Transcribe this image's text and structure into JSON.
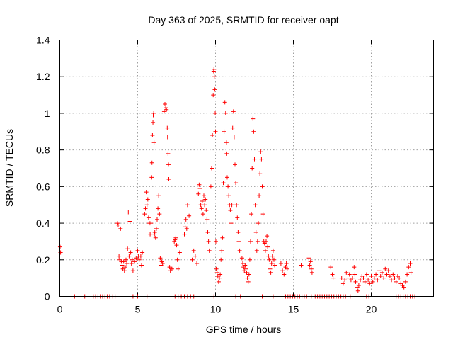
{
  "chart_data": {
    "type": "scatter",
    "title": "Day 363 of 2025, SRMTID for receiver oapt",
    "xlabel": "GPS time / hours",
    "ylabel": "SRMTID / TECUs",
    "xlim": [
      0,
      24
    ],
    "ylim": [
      0,
      1.4
    ],
    "xticks": [
      0,
      5,
      10,
      15,
      20
    ],
    "yticks": [
      0,
      0.2,
      0.4,
      0.6,
      0.8,
      1,
      1.2,
      1.4
    ],
    "xtick_labels": [
      "0",
      "5",
      "10",
      "15",
      "20"
    ],
    "ytick_labels": [
      "0",
      "0.2",
      "0.4",
      "0.6",
      "0.8",
      "1",
      "1.2",
      "1.4"
    ],
    "grid": true,
    "marker": "+",
    "marker_color": "#ff0000",
    "series": [
      {
        "name": "SRMTID",
        "points": [
          [
            0.02,
            0.27
          ],
          [
            0.05,
            0.24
          ],
          [
            0.95,
            0
          ],
          [
            1.6,
            0
          ],
          [
            2.15,
            0
          ],
          [
            2.3,
            0
          ],
          [
            2.45,
            0
          ],
          [
            2.6,
            0
          ],
          [
            2.75,
            0
          ],
          [
            2.9,
            0
          ],
          [
            3.05,
            0
          ],
          [
            3.2,
            0
          ],
          [
            3.4,
            0
          ],
          [
            3.55,
            0
          ],
          [
            3.7,
            0.4
          ],
          [
            3.75,
            0.39
          ],
          [
            3.8,
            0.22
          ],
          [
            3.85,
            0.2
          ],
          [
            3.9,
            0.37
          ],
          [
            3.95,
            0.19
          ],
          [
            4.0,
            0.17
          ],
          [
            4.05,
            0.15
          ],
          [
            4.1,
            0.19
          ],
          [
            4.15,
            0.14
          ],
          [
            4.2,
            0.16
          ],
          [
            4.25,
            0.2
          ],
          [
            4.3,
            0.18
          ],
          [
            4.35,
            0.26
          ],
          [
            4.4,
            0.46
          ],
          [
            4.45,
            0.22
          ],
          [
            4.5,
            0.41
          ],
          [
            4.55,
            0.24
          ],
          [
            4.6,
            0.18
          ],
          [
            4.65,
            0.2
          ],
          [
            4.7,
            0.14
          ],
          [
            4.8,
            0.19
          ],
          [
            4.9,
            0.21
          ],
          [
            5.0,
            0.25
          ],
          [
            5.05,
            0.22
          ],
          [
            5.1,
            0.2
          ],
          [
            5.2,
            0.22
          ],
          [
            5.25,
            0.17
          ],
          [
            5.3,
            0.24
          ],
          [
            5.45,
            0.45
          ],
          [
            5.5,
            0.48
          ],
          [
            5.55,
            0.57
          ],
          [
            5.6,
            0.5
          ],
          [
            5.65,
            0.53
          ],
          [
            5.7,
            0.43
          ],
          [
            5.75,
            0.4
          ],
          [
            5.8,
            0.34
          ],
          [
            5.85,
            0.4
          ],
          [
            5.9,
            0.65
          ],
          [
            5.92,
            0.73
          ],
          [
            5.95,
            0.88
          ],
          [
            5.98,
            0.95
          ],
          [
            6.0,
            0.99
          ],
          [
            6.03,
            1.0
          ],
          [
            6.05,
            0.84
          ],
          [
            6.08,
            0.34
          ],
          [
            6.1,
            0.35
          ],
          [
            6.15,
            0.32
          ],
          [
            6.2,
            0.37
          ],
          [
            6.25,
            0.42
          ],
          [
            6.3,
            0.48
          ],
          [
            6.35,
            0.55
          ],
          [
            6.4,
            0.45
          ],
          [
            6.45,
            0.21
          ],
          [
            6.5,
            0.17
          ],
          [
            6.55,
            0.19
          ],
          [
            6.6,
            0.18
          ],
          [
            6.7,
            1.01
          ],
          [
            6.75,
            1.05
          ],
          [
            6.8,
            1.03
          ],
          [
            6.85,
            1.02
          ],
          [
            6.9,
            0.92
          ],
          [
            6.92,
            0.87
          ],
          [
            6.95,
            0.78
          ],
          [
            6.98,
            0.72
          ],
          [
            7.0,
            0.64
          ],
          [
            7.05,
            0.16
          ],
          [
            7.1,
            0.14
          ],
          [
            7.2,
            0.15
          ],
          [
            7.35,
            0.3
          ],
          [
            7.4,
            0.31
          ],
          [
            7.45,
            0.32
          ],
          [
            7.5,
            0.28
          ],
          [
            7.55,
            0.2
          ],
          [
            7.6,
            0.15
          ],
          [
            7.7,
            0.24
          ],
          [
            8.0,
            0.34
          ],
          [
            8.05,
            0.38
          ],
          [
            8.1,
            0.42
          ],
          [
            8.15,
            0.37
          ],
          [
            8.2,
            0.5
          ],
          [
            8.3,
            0.44
          ],
          [
            8.5,
            0.2
          ],
          [
            8.6,
            0.25
          ],
          [
            8.7,
            0.22
          ],
          [
            8.8,
            0.18
          ],
          [
            8.9,
            0.56
          ],
          [
            8.95,
            0.61
          ],
          [
            9.0,
            0.59
          ],
          [
            9.05,
            0.5
          ],
          [
            9.1,
            0.48
          ],
          [
            9.15,
            0.52
          ],
          [
            9.2,
            0.45
          ],
          [
            9.25,
            0.55
          ],
          [
            9.3,
            0.5
          ],
          [
            9.35,
            0.53
          ],
          [
            9.4,
            0.47
          ],
          [
            9.45,
            0.42
          ],
          [
            9.5,
            0.35
          ],
          [
            9.55,
            0.3
          ],
          [
            9.6,
            0.25
          ],
          [
            9.7,
            0.6
          ],
          [
            9.75,
            0.7
          ],
          [
            9.8,
            0.88
          ],
          [
            9.85,
            1.1
          ],
          [
            9.88,
            1.23
          ],
          [
            9.9,
            1.24
          ],
          [
            9.92,
            1.2
          ],
          [
            9.95,
            1.13
          ],
          [
            9.98,
            1.0
          ],
          [
            10.0,
            0.9
          ],
          [
            10.02,
            0.3
          ],
          [
            10.05,
            0.15
          ],
          [
            10.1,
            0.13
          ],
          [
            10.15,
            0.11
          ],
          [
            10.2,
            0.08
          ],
          [
            10.25,
            0.1
          ],
          [
            10.3,
            0.12
          ],
          [
            10.35,
            0.2
          ],
          [
            10.4,
            0.25
          ],
          [
            10.45,
            0.32
          ],
          [
            10.5,
            0.62
          ],
          [
            10.55,
            0.9
          ],
          [
            10.6,
            1.06
          ],
          [
            10.65,
            1.0
          ],
          [
            10.7,
            0.84
          ],
          [
            10.72,
            0.78
          ],
          [
            10.75,
            0.65
          ],
          [
            10.8,
            0.6
          ],
          [
            10.85,
            0.55
          ],
          [
            10.9,
            0.5
          ],
          [
            10.95,
            0.47
          ],
          [
            11.0,
            0.4
          ],
          [
            11.05,
            0.5
          ],
          [
            11.1,
            0.92
          ],
          [
            11.15,
            1.01
          ],
          [
            11.2,
            0.87
          ],
          [
            11.25,
            0.72
          ],
          [
            11.3,
            0.62
          ],
          [
            11.35,
            0.5
          ],
          [
            11.4,
            0.43
          ],
          [
            11.45,
            0.35
          ],
          [
            11.5,
            0.3
          ],
          [
            11.55,
            0.25
          ],
          [
            11.7,
            0.21
          ],
          [
            11.75,
            0.18
          ],
          [
            11.8,
            0.16
          ],
          [
            11.85,
            0.14
          ],
          [
            11.9,
            0.17
          ],
          [
            11.95,
            0.15
          ],
          [
            12.0,
            0.13
          ],
          [
            12.05,
            0.1
          ],
          [
            12.1,
            0.08
          ],
          [
            12.15,
            0.12
          ],
          [
            12.2,
            0.2
          ],
          [
            12.25,
            0.3
          ],
          [
            12.3,
            0.45
          ],
          [
            12.35,
            0.7
          ],
          [
            12.4,
            0.97
          ],
          [
            12.45,
            0.9
          ],
          [
            12.5,
            0.75
          ],
          [
            12.55,
            0.5
          ],
          [
            12.6,
            0.35
          ],
          [
            12.65,
            0.25
          ],
          [
            12.7,
            0.3
          ],
          [
            12.75,
            0.4
          ],
          [
            12.8,
            0.55
          ],
          [
            12.85,
            0.67
          ],
          [
            12.9,
            0.79
          ],
          [
            12.95,
            0.75
          ],
          [
            13.0,
            0.6
          ],
          [
            13.05,
            0.45
          ],
          [
            13.1,
            0.3
          ],
          [
            13.15,
            0.29
          ],
          [
            13.2,
            0.25
          ],
          [
            13.25,
            0.3
          ],
          [
            13.3,
            0.33
          ],
          [
            13.35,
            0.27
          ],
          [
            13.4,
            0.22
          ],
          [
            13.45,
            0.2
          ],
          [
            13.5,
            0.15
          ],
          [
            13.55,
            0.13
          ],
          [
            13.6,
            0.18
          ],
          [
            13.65,
            0.22
          ],
          [
            13.7,
            0.25
          ],
          [
            13.75,
            0.2
          ],
          [
            13.8,
            0.17
          ],
          [
            14.2,
            0.18
          ],
          [
            14.3,
            0.14
          ],
          [
            14.4,
            0.12
          ],
          [
            14.5,
            0.16
          ],
          [
            14.55,
            0.18
          ],
          [
            14.6,
            0.15
          ],
          [
            15.5,
            0.17
          ],
          [
            16.0,
            0.21
          ],
          [
            16.05,
            0.17
          ],
          [
            16.1,
            0.19
          ],
          [
            16.15,
            0.15
          ],
          [
            16.2,
            0.13
          ],
          [
            17.4,
            0.16
          ],
          [
            17.5,
            0.12
          ],
          [
            17.55,
            0.1
          ],
          [
            18.1,
            0.1
          ],
          [
            18.2,
            0.07
          ],
          [
            18.3,
            0.09
          ],
          [
            18.4,
            0.13
          ],
          [
            18.5,
            0.1
          ],
          [
            18.6,
            0.12
          ],
          [
            18.7,
            0.09
          ],
          [
            18.8,
            0.1
          ],
          [
            18.9,
            0.16
          ],
          [
            18.95,
            0.12
          ],
          [
            19.0,
            0.08
          ],
          [
            19.1,
            0.05
          ],
          [
            19.15,
            0.03
          ],
          [
            19.2,
            0.06
          ],
          [
            19.3,
            0.09
          ],
          [
            19.4,
            0.11
          ],
          [
            19.5,
            0.1
          ],
          [
            19.6,
            0.08
          ],
          [
            19.7,
            0.12
          ],
          [
            19.8,
            0.09
          ],
          [
            19.9,
            0.07
          ],
          [
            20.0,
            0.11
          ],
          [
            20.1,
            0.08
          ],
          [
            20.2,
            0.1
          ],
          [
            20.3,
            0.12
          ],
          [
            20.4,
            0.09
          ],
          [
            20.5,
            0.14
          ],
          [
            20.6,
            0.11
          ],
          [
            20.7,
            0.13
          ],
          [
            20.8,
            0.1
          ],
          [
            20.9,
            0.15
          ],
          [
            21.0,
            0.12
          ],
          [
            21.1,
            0.14
          ],
          [
            21.2,
            0.11
          ],
          [
            21.3,
            0.09
          ],
          [
            21.4,
            0.12
          ],
          [
            21.5,
            0.1
          ],
          [
            21.6,
            0.08
          ],
          [
            21.7,
            0.11
          ],
          [
            21.8,
            0.1
          ],
          [
            21.9,
            0.07
          ],
          [
            22.0,
            0.06
          ],
          [
            22.1,
            0.05
          ],
          [
            22.2,
            0.08
          ],
          [
            22.3,
            0.12
          ],
          [
            22.4,
            0.16
          ],
          [
            22.5,
            0.18
          ],
          [
            22.55,
            0.13
          ],
          [
            4.5,
            0
          ],
          [
            4.7,
            0
          ],
          [
            5.0,
            0
          ],
          [
            5.6,
            0
          ],
          [
            7.4,
            0
          ],
          [
            7.6,
            0
          ],
          [
            7.8,
            0
          ],
          [
            8.0,
            0
          ],
          [
            8.2,
            0
          ],
          [
            8.4,
            0
          ],
          [
            8.6,
            0
          ],
          [
            9.9,
            0
          ],
          [
            11.3,
            0
          ],
          [
            11.6,
            0
          ],
          [
            13.0,
            0
          ],
          [
            13.5,
            0
          ],
          [
            13.7,
            0
          ],
          [
            14.5,
            0
          ],
          [
            14.65,
            0
          ],
          [
            14.8,
            0
          ],
          [
            14.95,
            0
          ],
          [
            15.1,
            0
          ],
          [
            15.25,
            0
          ],
          [
            15.4,
            0
          ],
          [
            15.55,
            0
          ],
          [
            15.7,
            0
          ],
          [
            15.85,
            0
          ],
          [
            16.0,
            0
          ],
          [
            16.15,
            0
          ],
          [
            16.4,
            0
          ],
          [
            16.55,
            0
          ],
          [
            16.7,
            0
          ],
          [
            16.85,
            0
          ],
          [
            17.0,
            0
          ],
          [
            17.15,
            0
          ],
          [
            17.3,
            0
          ],
          [
            17.45,
            0
          ],
          [
            17.6,
            0
          ],
          [
            17.75,
            0
          ],
          [
            17.9,
            0
          ],
          [
            18.05,
            0
          ],
          [
            18.2,
            0
          ],
          [
            18.35,
            0
          ],
          [
            18.5,
            0
          ],
          [
            18.65,
            0
          ],
          [
            19.7,
            0
          ],
          [
            19.85,
            0
          ],
          [
            21.6,
            0
          ],
          [
            21.75,
            0
          ],
          [
            21.9,
            0
          ],
          [
            22.05,
            0
          ],
          [
            22.2,
            0
          ],
          [
            22.35,
            0
          ],
          [
            22.5,
            0
          ],
          [
            22.65,
            0
          ],
          [
            22.8,
            0
          ]
        ]
      }
    ]
  }
}
